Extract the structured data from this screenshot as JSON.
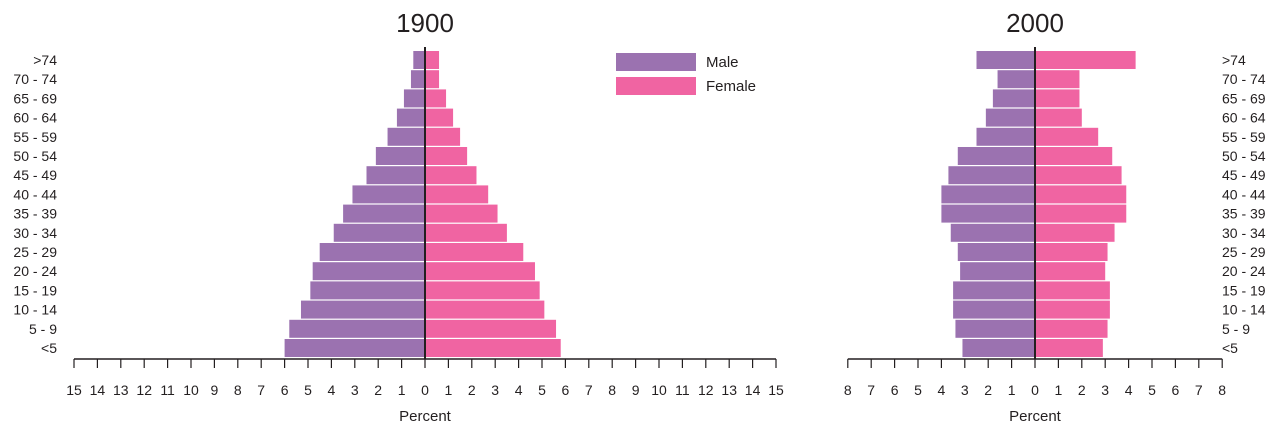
{
  "chart_data": [
    {
      "type": "bar",
      "orientation": "horizontal-population-pyramid",
      "title": "1900",
      "xlabel": "Percent",
      "xlim": [
        -15,
        15
      ],
      "xticks": [
        15,
        14,
        13,
        12,
        11,
        10,
        9,
        8,
        7,
        6,
        5,
        4,
        3,
        2,
        1,
        0,
        1,
        2,
        3,
        4,
        5,
        6,
        7,
        8,
        9,
        10,
        11,
        12,
        13,
        14,
        15
      ],
      "categories": [
        ">74",
        "70 - 74",
        "65 - 69",
        "60 - 64",
        "55 - 59",
        "50 - 54",
        "45 - 49",
        "40 - 44",
        "35 - 39",
        "30 - 34",
        "25 - 29",
        "20 - 24",
        "15 - 19",
        "10 - 14",
        "5 - 9",
        "<5"
      ],
      "category_label_side": "left",
      "series": [
        {
          "name": "Male",
          "color": "#9b72b0",
          "values": [
            0.5,
            0.6,
            0.9,
            1.2,
            1.6,
            2.1,
            2.5,
            3.1,
            3.5,
            3.9,
            4.5,
            4.8,
            4.9,
            5.3,
            5.8,
            6.0
          ]
        },
        {
          "name": "Female",
          "color": "#f064a2",
          "values": [
            0.6,
            0.6,
            0.9,
            1.2,
            1.5,
            1.8,
            2.2,
            2.7,
            3.1,
            3.5,
            4.2,
            4.7,
            4.9,
            5.1,
            5.6,
            5.8
          ]
        }
      ],
      "legend": {
        "position": "top-right",
        "entries": [
          "Male",
          "Female"
        ]
      }
    },
    {
      "type": "bar",
      "orientation": "horizontal-population-pyramid",
      "title": "2000",
      "xlabel": "Percent",
      "xlim": [
        -8,
        8
      ],
      "xticks": [
        8,
        7,
        6,
        5,
        4,
        3,
        2,
        1,
        0,
        1,
        2,
        3,
        4,
        5,
        6,
        7,
        8
      ],
      "categories": [
        ">74",
        "70 - 74",
        "65 - 69",
        "60 - 64",
        "55 - 59",
        "50 - 54",
        "45 - 49",
        "40 - 44",
        "35 - 39",
        "30 - 34",
        "25 - 29",
        "20 - 24",
        "15 - 19",
        "10 - 14",
        "5 - 9",
        "<5"
      ],
      "category_label_side": "right",
      "series": [
        {
          "name": "Male",
          "color": "#9b72b0",
          "values": [
            2.5,
            1.6,
            1.8,
            2.1,
            2.5,
            3.3,
            3.7,
            4.0,
            4.0,
            3.6,
            3.3,
            3.2,
            3.5,
            3.5,
            3.4,
            3.1
          ]
        },
        {
          "name": "Female",
          "color": "#f064a2",
          "values": [
            4.3,
            1.9,
            1.9,
            2.0,
            2.7,
            3.3,
            3.7,
            3.9,
            3.9,
            3.4,
            3.1,
            3.0,
            3.2,
            3.2,
            3.1,
            2.9
          ]
        }
      ]
    }
  ]
}
